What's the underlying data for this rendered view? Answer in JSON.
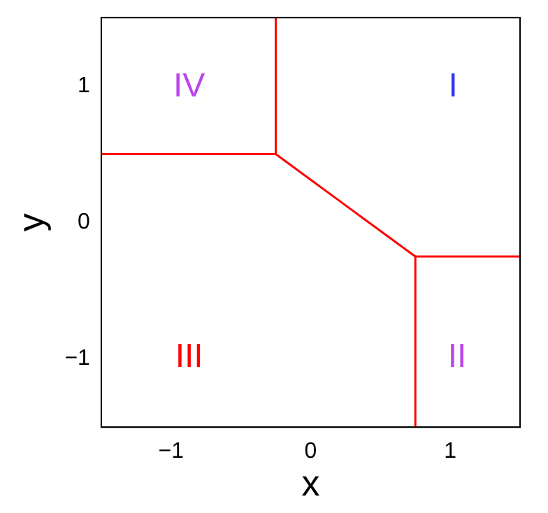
{
  "chart_data": {
    "type": "line",
    "xlabel": "x",
    "ylabel": "y",
    "xlim": [
      -1.5,
      1.5
    ],
    "ylim": [
      -1.5,
      1.5
    ],
    "xticks": [
      -1,
      0,
      1
    ],
    "yticks": [
      -1,
      0,
      1
    ],
    "grid": false,
    "legend": false,
    "marker": "none",
    "line_style": "solid",
    "series": [
      {
        "color": "#ff0000",
        "x": [
          -0.25,
          -0.25
        ],
        "values": [
          1.5,
          0.5
        ]
      },
      {
        "color": "#ff0000",
        "x": [
          -1.5,
          -0.25
        ],
        "values": [
          0.5,
          0.5
        ]
      },
      {
        "color": "#ff0000",
        "x": [
          -0.25,
          0.75
        ],
        "values": [
          0.5,
          -0.25
        ]
      },
      {
        "color": "#ff0000",
        "x": [
          0.75,
          1.5
        ],
        "values": [
          -0.25,
          -0.25
        ]
      },
      {
        "color": "#ff0000",
        "x": [
          0.75,
          0.75
        ],
        "values": [
          -0.25,
          -1.5
        ]
      }
    ],
    "annotations": [
      "I",
      "II",
      "III",
      "IV"
    ]
  }
}
